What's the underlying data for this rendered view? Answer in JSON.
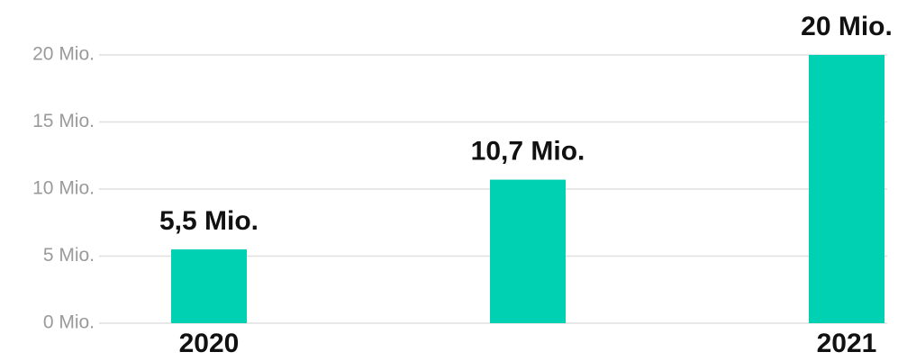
{
  "chart_data": {
    "type": "bar",
    "categories": [
      "2020",
      null,
      "2021"
    ],
    "values": [
      5.5,
      10.7,
      20
    ],
    "value_labels": [
      "5,5 Mio.",
      "10,7 Mio.",
      "20 Mio."
    ],
    "color": "#00d1b2",
    "ylim": [
      0,
      20
    ],
    "yticks": [
      {
        "value": 0,
        "label": "0 Mio."
      },
      {
        "value": 5,
        "label": "5 Mio."
      },
      {
        "value": 10,
        "label": "10 Mio."
      },
      {
        "value": 15,
        "label": "15 Mio."
      },
      {
        "value": 20,
        "label": "20 Mio."
      }
    ],
    "grid": true
  }
}
